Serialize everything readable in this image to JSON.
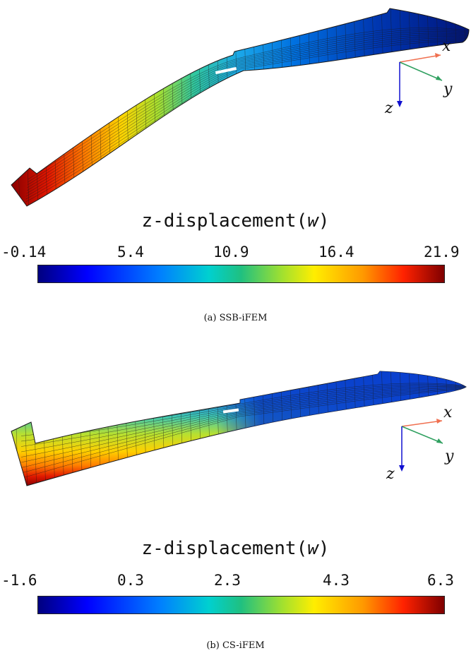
{
  "panels": [
    {
      "caption": "(a) SSB-iFEM",
      "colorbar": {
        "title_prefix": "z-displacement(",
        "title_var": "w",
        "title_suffix": ")",
        "ticks": [
          "-0.14",
          "5.4",
          "10.9",
          "16.4",
          "21.9"
        ]
      },
      "axes": {
        "x": "x",
        "y": "y",
        "z": "z"
      }
    },
    {
      "caption": "(b) CS-iFEM",
      "colorbar": {
        "title_prefix": "z-displacement(",
        "title_var": "w",
        "title_suffix": ")",
        "ticks": [
          "-1.6",
          "0.3",
          "2.3",
          "4.3",
          "6.3"
        ]
      },
      "axes": {
        "x": "x",
        "y": "y",
        "z": "z"
      }
    }
  ],
  "colors": {
    "axis_x": "#f07050",
    "axis_y": "#30a060",
    "axis_z": "#1010d0",
    "mesh_line": "#1a1a1a"
  }
}
